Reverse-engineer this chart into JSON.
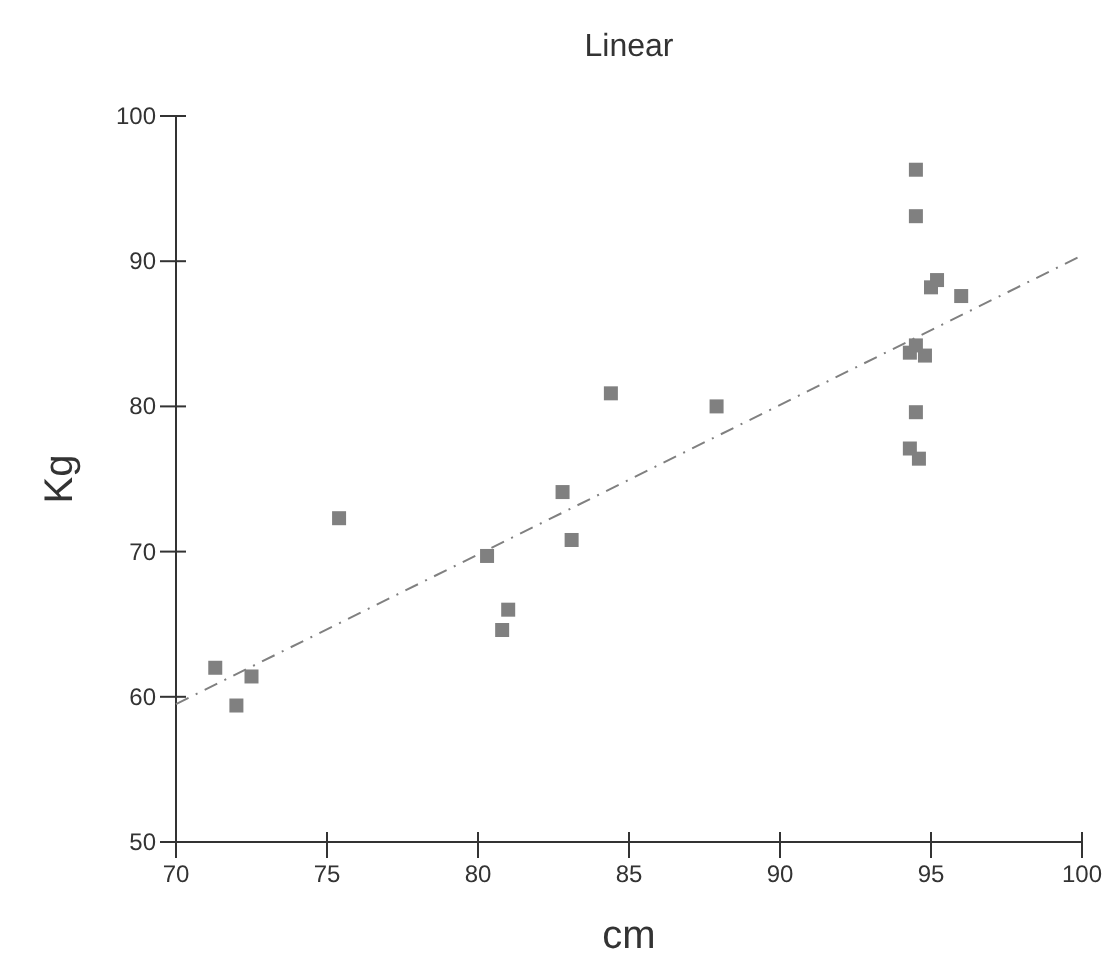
{
  "chart_data": {
    "type": "scatter",
    "title": "Linear",
    "xlabel": "cm",
    "ylabel": "Kg",
    "xlim": [
      70,
      100
    ],
    "ylim": [
      50,
      100
    ],
    "xticks": [
      70,
      75,
      80,
      85,
      90,
      95,
      100
    ],
    "yticks": [
      50,
      60,
      70,
      80,
      90,
      100
    ],
    "grid": false,
    "marker": "square",
    "series": [
      {
        "color": "#808080",
        "x": [
          71.3,
          72.0,
          72.5,
          75.4,
          80.3,
          80.8,
          81.0,
          82.8,
          83.1,
          84.4,
          87.9,
          94.5,
          94.5,
          95.2,
          95.0,
          96.0,
          94.5,
          94.3,
          94.8,
          94.5,
          94.3,
          94.6
        ],
        "values": [
          62.0,
          59.4,
          61.4,
          72.3,
          69.7,
          64.6,
          66.0,
          74.1,
          70.8,
          80.9,
          80.0,
          96.3,
          93.1,
          88.7,
          88.2,
          87.6,
          84.2,
          83.7,
          83.5,
          79.6,
          77.1,
          76.4
        ]
      },
      {
        "type": "line",
        "color": "#808080",
        "line_style": "dashed",
        "marker": "none",
        "x": [
          70,
          100
        ],
        "values": [
          59.5,
          90.4
        ]
      }
    ]
  }
}
